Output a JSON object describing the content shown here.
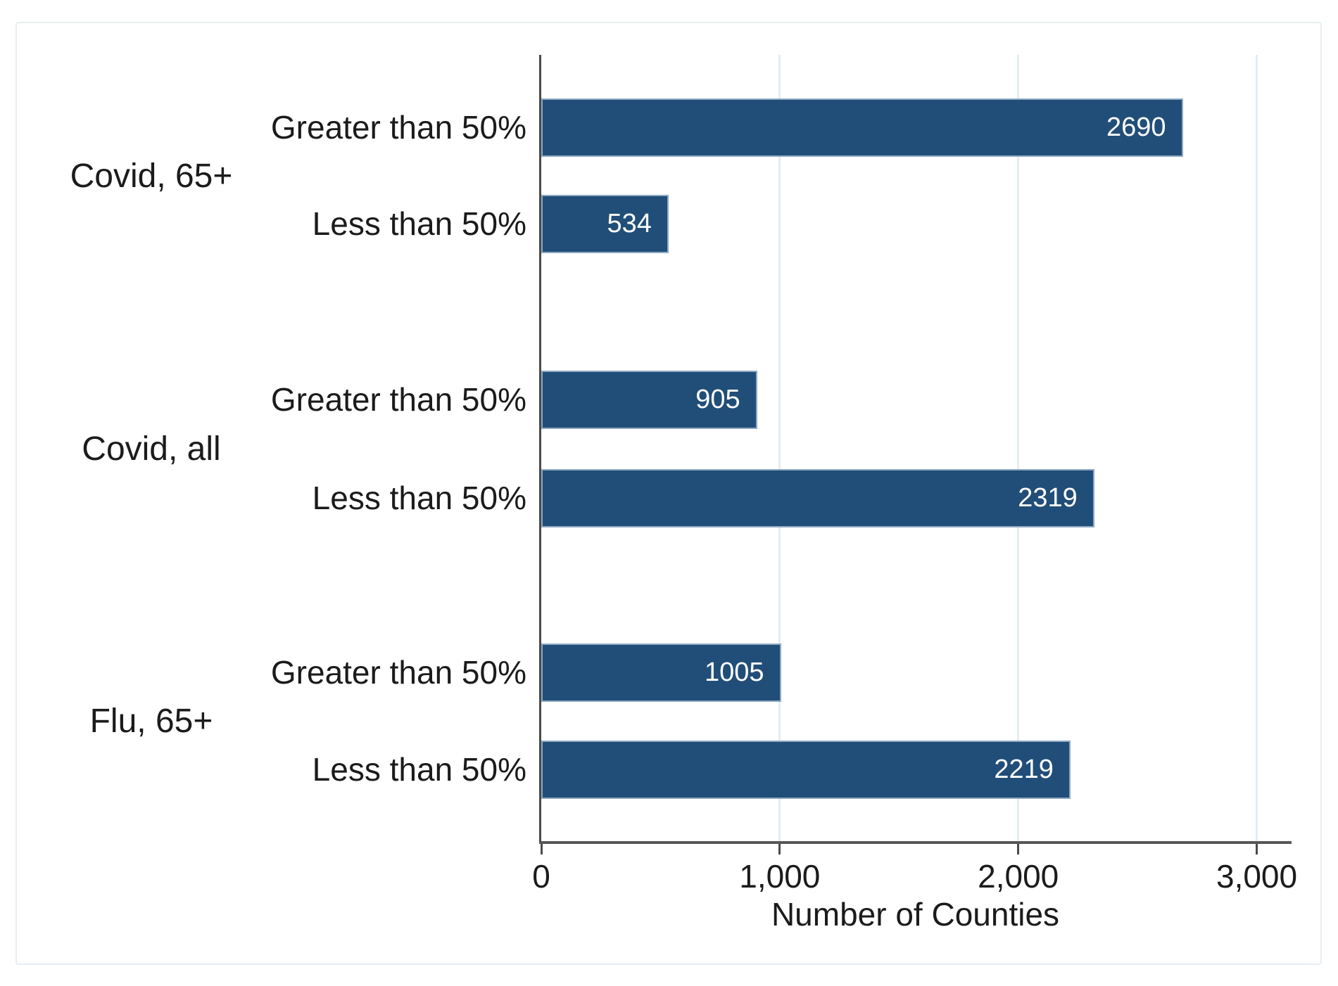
{
  "chart_data": {
    "type": "bar",
    "orientation": "horizontal",
    "title": "",
    "xlabel": "Number of Counties",
    "ylabel": "",
    "grid": "vertical gridlines at ticks",
    "legend": "none",
    "x_axis": {
      "max": 3140,
      "tick_values": [
        0,
        1000,
        2000,
        3000
      ],
      "tick_labels": [
        "0",
        "1,000",
        "2,000",
        "3,000"
      ]
    },
    "groups": [
      {
        "name": "Covid, 65+",
        "bars": [
          {
            "label": "Greater than 50%",
            "value": 2690
          },
          {
            "label": "Less than 50%",
            "value": 534
          }
        ]
      },
      {
        "name": "Covid, all",
        "bars": [
          {
            "label": "Greater than 50%",
            "value": 905
          },
          {
            "label": "Less than 50%",
            "value": 2319
          }
        ]
      },
      {
        "name": "Flu, 65+",
        "bars": [
          {
            "label": "Greater than 50%",
            "value": 1005
          },
          {
            "label": "Less than 50%",
            "value": 2219
          }
        ]
      }
    ],
    "colors": {
      "bar_fill": "#214e78",
      "bar_border": "#8fa9c3",
      "value_label": "#ffffff",
      "gridline": "#e3edf2",
      "axis": "#4a4a4a",
      "text": "#1b1b1b",
      "card_border": "#e7eef2",
      "background": "#ffffff"
    }
  }
}
